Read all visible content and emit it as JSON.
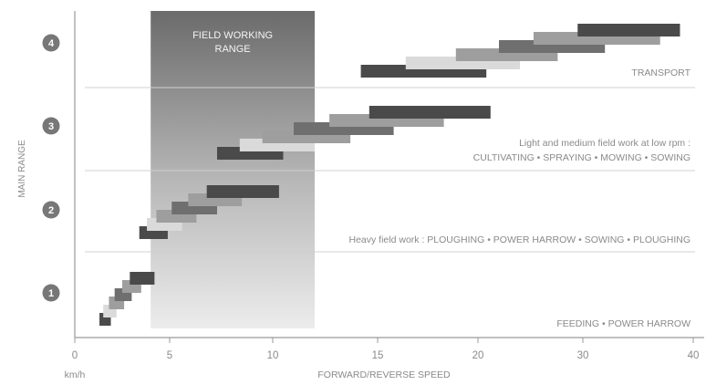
{
  "chart_data": {
    "type": "bar",
    "title": "",
    "xlabel": "FORWARD/REVERSE SPEED",
    "x_unit": "km/h",
    "ylabel": "MAIN RANGE",
    "x_ticks": [
      0,
      5,
      10,
      15,
      20,
      30,
      40
    ],
    "ranges": [
      {
        "label": "1",
        "description": "FEEDING • POWER HARROW"
      },
      {
        "label": "2",
        "description": "Heavy field work : PLOUGHING • POWER HARROW • SOWING • PLOUGHING"
      },
      {
        "label": "3",
        "description_lines": [
          "Light and medium field work at low rpm :",
          "CULTIVATING • SPRAYING • MOWING • SOWING"
        ]
      },
      {
        "label": "4",
        "description": "TRANSPORT"
      }
    ],
    "shaded_region": {
      "label_lines": [
        "FIELD WORKING",
        "RANGE"
      ],
      "x_start": 4,
      "x_end": 12
    },
    "gear_bars": [
      {
        "range": 1,
        "x_start": 1.3,
        "x_end": 1.9,
        "shade": "dark"
      },
      {
        "range": 1,
        "x_start": 1.5,
        "x_end": 2.2,
        "shade": "lighter"
      },
      {
        "range": 1,
        "x_start": 1.8,
        "x_end": 2.6,
        "shade": "light"
      },
      {
        "range": 1,
        "x_start": 2.1,
        "x_end": 3.0,
        "shade": "medium"
      },
      {
        "range": 1,
        "x_start": 2.5,
        "x_end": 3.5,
        "shade": "light"
      },
      {
        "range": 1,
        "x_start": 2.9,
        "x_end": 4.2,
        "shade": "dark"
      },
      {
        "range": 2,
        "x_start": 3.4,
        "x_end": 4.9,
        "shade": "dark"
      },
      {
        "range": 2,
        "x_start": 3.8,
        "x_end": 5.6,
        "shade": "lighter"
      },
      {
        "range": 2,
        "x_start": 4.3,
        "x_end": 6.3,
        "shade": "light"
      },
      {
        "range": 2,
        "x_start": 5.1,
        "x_end": 7.3,
        "shade": "medium"
      },
      {
        "range": 2,
        "x_start": 5.9,
        "x_end": 8.5,
        "shade": "light"
      },
      {
        "range": 2,
        "x_start": 6.8,
        "x_end": 10.3,
        "shade": "dark"
      },
      {
        "range": 3,
        "x_start": 7.3,
        "x_end": 10.5,
        "shade": "dark"
      },
      {
        "range": 3,
        "x_start": 8.4,
        "x_end": 12.0,
        "shade": "lighter"
      },
      {
        "range": 3,
        "x_start": 9.5,
        "x_end": 13.7,
        "shade": "light"
      },
      {
        "range": 3,
        "x_start": 11.0,
        "x_end": 15.8,
        "shade": "medium"
      },
      {
        "range": 3,
        "x_start": 12.7,
        "x_end": 18.3,
        "shade": "light"
      },
      {
        "range": 3,
        "x_start": 14.6,
        "x_end": 21.2,
        "shade": "dark"
      },
      {
        "range": 4,
        "x_start": 14.2,
        "x_end": 20.8,
        "shade": "dark"
      },
      {
        "range": 4,
        "x_start": 16.4,
        "x_end": 24.0,
        "shade": "lighter"
      },
      {
        "range": 4,
        "x_start": 18.9,
        "x_end": 27.6,
        "shade": "light"
      },
      {
        "range": 4,
        "x_start": 22.0,
        "x_end": 32.0,
        "shade": "medium"
      },
      {
        "range": 4,
        "x_start": 25.3,
        "x_end": 37.0,
        "shade": "light"
      },
      {
        "range": 4,
        "x_start": 29.5,
        "x_end": 38.8,
        "shade": "dark"
      }
    ],
    "colors": {
      "dark": "#4a4a4a",
      "medium": "#6f6f6f",
      "light": "#9e9e9e",
      "lighter": "#dadada",
      "axis": "#8a8a8a",
      "text": "#8a8a8a",
      "range_badge": "#777777",
      "separator": "#d0d0d0"
    }
  }
}
